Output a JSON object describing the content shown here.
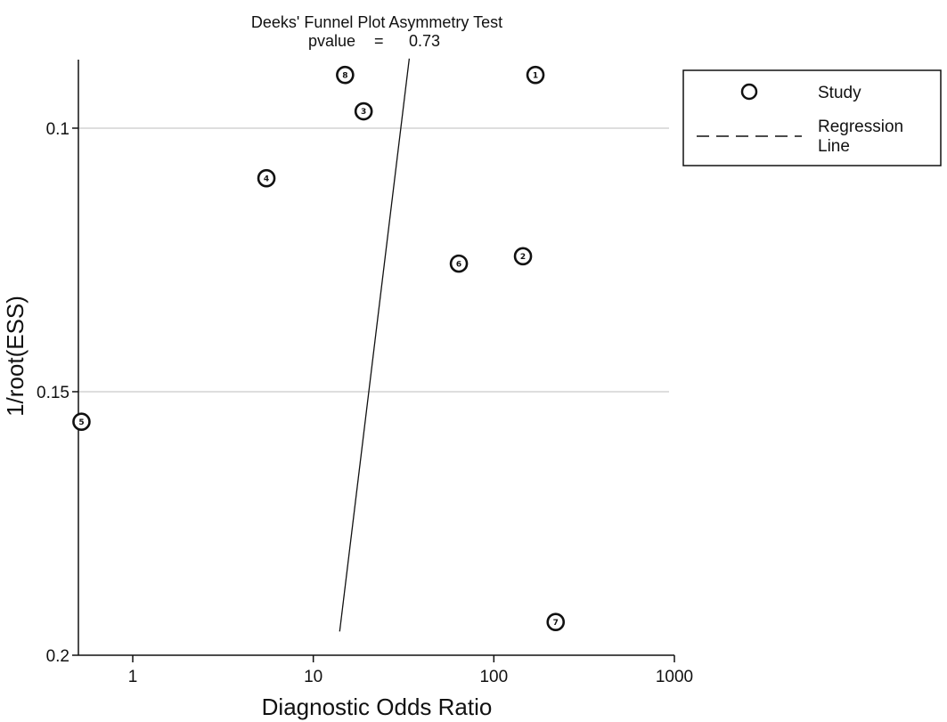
{
  "chart_data": {
    "type": "scatter",
    "title": "Deeks' Funnel Plot Asymmetry Test",
    "subtitle_label": "pvalue",
    "subtitle_sep": "=",
    "subtitle_value": "0.73",
    "xlabel": "Diagnostic Odds Ratio",
    "ylabel": "1/root(ESS)",
    "x_scale": "log",
    "xlim": [
      0.5,
      1000
    ],
    "ylim": [
      0.087,
      0.2
    ],
    "y_reversed": true,
    "x_ticks": [
      {
        "value": 1,
        "label": "1"
      },
      {
        "value": 10,
        "label": "10"
      },
      {
        "value": 100,
        "label": "100"
      },
      {
        "value": 1000,
        "label": "1000"
      }
    ],
    "y_ticks": [
      {
        "value": 0.1,
        "label": "0.1"
      },
      {
        "value": 0.15,
        "label": "0.15"
      },
      {
        "value": 0.2,
        "label": "0.2"
      }
    ],
    "gridlines_y": [
      0.1,
      0.15
    ],
    "points": [
      {
        "label": "1",
        "x": 170,
        "y": 0.0899
      },
      {
        "label": "2",
        "x": 145,
        "y": 0.1243
      },
      {
        "label": "3",
        "x": 19,
        "y": 0.0968
      },
      {
        "label": "4",
        "x": 5.5,
        "y": 0.1095
      },
      {
        "label": "5",
        "x": 0.52,
        "y": 0.1557
      },
      {
        "label": "6",
        "x": 64,
        "y": 0.1257
      },
      {
        "label": "7",
        "x": 220,
        "y": 0.1937
      },
      {
        "label": "8",
        "x": 15,
        "y": 0.0899
      }
    ],
    "regression_line": [
      {
        "x": 14,
        "y": 0.1955
      },
      {
        "x": 34,
        "y": 0.0868
      }
    ],
    "legend": {
      "placement": "top-right",
      "entries": [
        {
          "label": "Study",
          "marker": "circle"
        },
        {
          "label": "Regression Line",
          "marker": "dashed-line"
        }
      ]
    }
  }
}
